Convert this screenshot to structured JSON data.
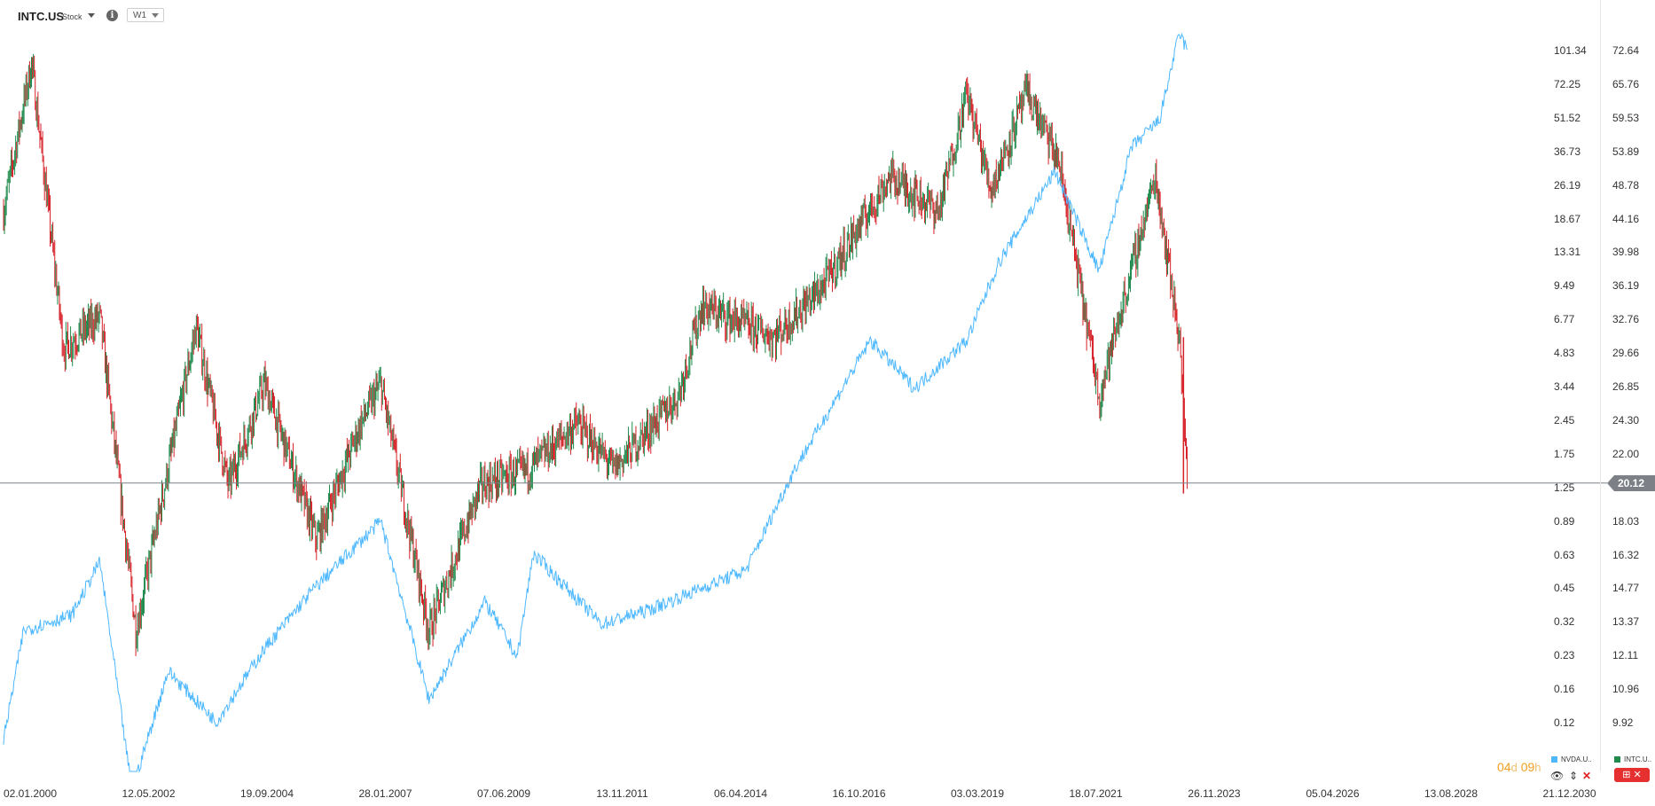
{
  "header": {
    "symbol": "INTC.US",
    "type": "Stock",
    "info_glyph": "i",
    "timeframe": "W1"
  },
  "colors": {
    "up": "#1e8a4c",
    "down": "#d62027",
    "compare_line": "#4db8ff",
    "price_line": "#7d8087",
    "countdown": "#f0a020"
  },
  "left_axis_labels": [
    "101.34",
    "72.25",
    "51.52",
    "36.73",
    "26.19",
    "18.67",
    "13.31",
    "9.49",
    "6.77",
    "4.83",
    "3.44",
    "2.45",
    "1.75",
    "1.25",
    "0.89",
    "0.63",
    "0.45",
    "0.32",
    "0.23",
    "0.16",
    "0.12"
  ],
  "right_axis_labels": [
    "72.64",
    "65.76",
    "59.53",
    "53.89",
    "48.78",
    "44.16",
    "39.98",
    "36.19",
    "32.76",
    "29.66",
    "26.85",
    "24.30",
    "22.00",
    "",
    "18.03",
    "16.32",
    "14.77",
    "13.37",
    "12.11",
    "10.96",
    "9.92"
  ],
  "x_labels": [
    "02.01.2000",
    "12.05.2002",
    "19.09.2004",
    "28.01.2007",
    "07.06.2009",
    "13.11.2011",
    "06.04.2014",
    "16.10.2016",
    "03.03.2019",
    "18.07.2021",
    "26.11.2023",
    "05.04.2026",
    "13.08.2028",
    "21.12.2030"
  ],
  "current_price": "20.12",
  "countdown": {
    "days": "04",
    "day_unit": "d",
    "hours": "09",
    "hour_unit": "h"
  },
  "legend": [
    {
      "label": "NVDA.U..",
      "color": "#4db8ff"
    },
    {
      "label": "INTC.U..",
      "color": "#1e8a4c"
    }
  ],
  "controls": {
    "eye": "👁",
    "sort": "⇕",
    "close": "✕",
    "badge": "⊞ ✕"
  },
  "chart_data": [
    {
      "type": "candlestick",
      "series_name": "INTC.US",
      "interval": "W1",
      "scale": "log",
      "right_axis_range": [
        9.92,
        72.64
      ],
      "approx_close": [
        {
          "x": "2000-01",
          "y": 45
        },
        {
          "x": "2000-08",
          "y": 70
        },
        {
          "x": "2001-04",
          "y": 30
        },
        {
          "x": "2002-01",
          "y": 33
        },
        {
          "x": "2002-10",
          "y": 13
        },
        {
          "x": "2003-06",
          "y": 21
        },
        {
          "x": "2004-01",
          "y": 32
        },
        {
          "x": "2004-09",
          "y": 20
        },
        {
          "x": "2005-06",
          "y": 27
        },
        {
          "x": "2006-07",
          "y": 17
        },
        {
          "x": "2007-06",
          "y": 24
        },
        {
          "x": "2007-11",
          "y": 27
        },
        {
          "x": "2008-11",
          "y": 13
        },
        {
          "x": "2009-12",
          "y": 20
        },
        {
          "x": "2010-12",
          "y": 21
        },
        {
          "x": "2011-12",
          "y": 24
        },
        {
          "x": "2012-09",
          "y": 21
        },
        {
          "x": "2014-01",
          "y": 26
        },
        {
          "x": "2014-07",
          "y": 34
        },
        {
          "x": "2016-01",
          "y": 31
        },
        {
          "x": "2017-01",
          "y": 36
        },
        {
          "x": "2018-06",
          "y": 50
        },
        {
          "x": "2019-06",
          "y": 45
        },
        {
          "x": "2020-01",
          "y": 64
        },
        {
          "x": "2020-07",
          "y": 48
        },
        {
          "x": "2021-04",
          "y": 64
        },
        {
          "x": "2021-12",
          "y": 52
        },
        {
          "x": "2022-10",
          "y": 26
        },
        {
          "x": "2023-12",
          "y": 50
        },
        {
          "x": "2024-06",
          "y": 31
        },
        {
          "x": "2024-08",
          "y": 20.12
        }
      ]
    },
    {
      "type": "line",
      "series_name": "NVDA.U..",
      "scale": "log",
      "left_axis_range": [
        0.12,
        101.34
      ],
      "approx_values": [
        {
          "x": "2000-01",
          "y": 0.1
        },
        {
          "x": "2000-06",
          "y": 0.3
        },
        {
          "x": "2001-06",
          "y": 0.35
        },
        {
          "x": "2002-01",
          "y": 0.6
        },
        {
          "x": "2002-09",
          "y": 0.06
        },
        {
          "x": "2003-06",
          "y": 0.2
        },
        {
          "x": "2004-06",
          "y": 0.12
        },
        {
          "x": "2005-06",
          "y": 0.25
        },
        {
          "x": "2006-06",
          "y": 0.45
        },
        {
          "x": "2007-11",
          "y": 0.9
        },
        {
          "x": "2008-11",
          "y": 0.15
        },
        {
          "x": "2010-01",
          "y": 0.4
        },
        {
          "x": "2010-09",
          "y": 0.23
        },
        {
          "x": "2011-01",
          "y": 0.65
        },
        {
          "x": "2012-06",
          "y": 0.32
        },
        {
          "x": "2013-06",
          "y": 0.37
        },
        {
          "x": "2015-06",
          "y": 0.55
        },
        {
          "x": "2016-06",
          "y": 1.5
        },
        {
          "x": "2018-01",
          "y": 5.5
        },
        {
          "x": "2018-12",
          "y": 3.4
        },
        {
          "x": "2020-01",
          "y": 5.5
        },
        {
          "x": "2020-09",
          "y": 12
        },
        {
          "x": "2021-11",
          "y": 30
        },
        {
          "x": "2022-10",
          "y": 11
        },
        {
          "x": "2023-06",
          "y": 38
        },
        {
          "x": "2024-01",
          "y": 50
        },
        {
          "x": "2024-06",
          "y": 120
        },
        {
          "x": "2024-08",
          "y": 100
        }
      ]
    }
  ]
}
